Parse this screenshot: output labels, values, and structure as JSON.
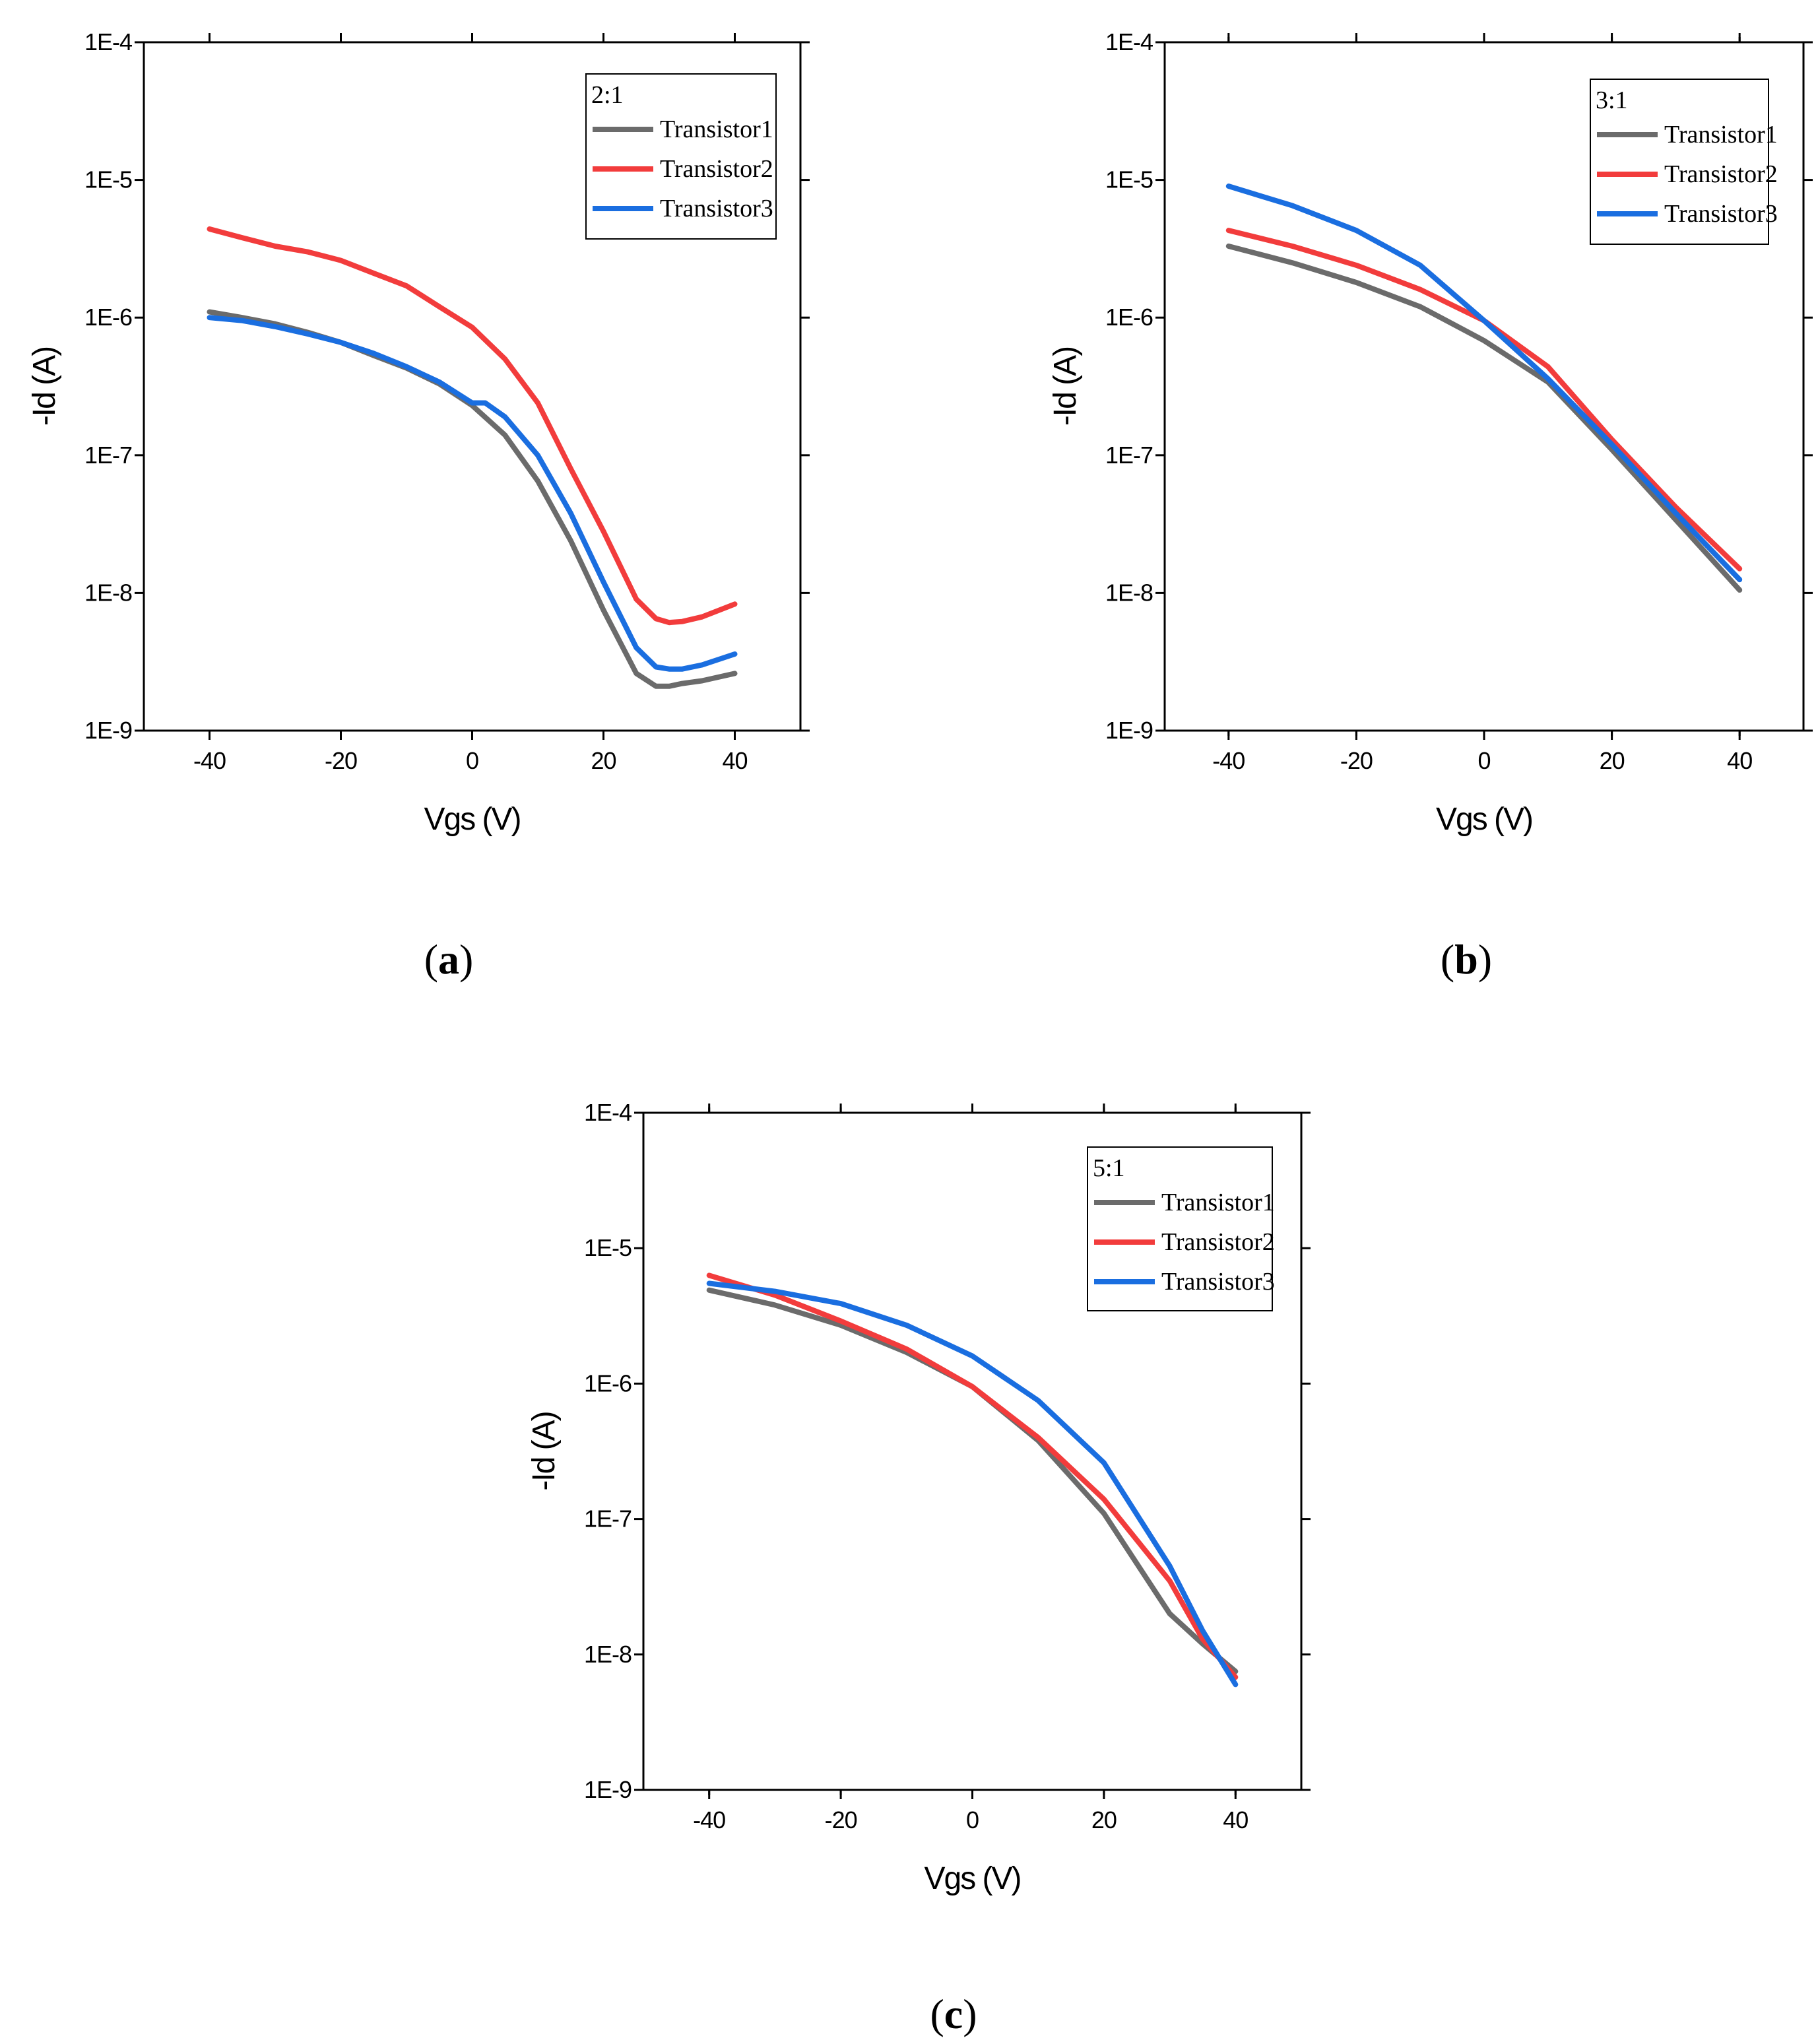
{
  "chart_data": [
    {
      "type": "line",
      "panel": "a",
      "panel_label": "a",
      "legend_title": "2:1",
      "xlabel": "Vgs (V)",
      "ylabel": "-Id (A)",
      "xlim": [
        -50,
        50
      ],
      "ylim_log10": [
        -9,
        -4
      ],
      "x_ticks": [
        "-40",
        "-20",
        "0",
        "20",
        "40"
      ],
      "y_ticks": [
        "1E-4",
        "1E-5",
        "1E-6",
        "1E-7",
        "1E-8",
        "1E-9"
      ],
      "series": [
        {
          "name": "Transistor1",
          "color": "#6b6b6b",
          "x": [
            -40,
            -35,
            -30,
            -25,
            -20,
            -15,
            -10,
            -5,
            0,
            5,
            10,
            15,
            20,
            25,
            28,
            30,
            32,
            35,
            40
          ],
          "y": [
            1.1e-06,
            1e-06,
            9e-07,
            7.8e-07,
            6.6e-07,
            5.3e-07,
            4.3e-07,
            3.3e-07,
            2.3e-07,
            1.4e-07,
            6.5e-08,
            2.4e-08,
            7.5e-09,
            2.6e-09,
            2.1e-09,
            2.1e-09,
            2.2e-09,
            2.3e-09,
            2.6e-09
          ]
        },
        {
          "name": "Transistor2",
          "color": "#f23c3c",
          "x": [
            -40,
            -35,
            -30,
            -25,
            -20,
            -15,
            -10,
            -5,
            0,
            5,
            10,
            15,
            20,
            25,
            28,
            30,
            32,
            35,
            40
          ],
          "y": [
            4.4e-06,
            3.8e-06,
            3.3e-06,
            3e-06,
            2.6e-06,
            2.1e-06,
            1.7e-06,
            1.2e-06,
            8.5e-07,
            5e-07,
            2.4e-07,
            8e-08,
            2.8e-08,
            9e-09,
            6.5e-09,
            6.1e-09,
            6.2e-09,
            6.7e-09,
            8.3e-09
          ]
        },
        {
          "name": "Transistor3",
          "color": "#1a6ee0",
          "x": [
            -40,
            -35,
            -30,
            -25,
            -20,
            -15,
            -10,
            -5,
            0,
            2,
            5,
            10,
            15,
            20,
            25,
            28,
            30,
            32,
            35,
            40
          ],
          "y": [
            1e-06,
            9.5e-07,
            8.6e-07,
            7.6e-07,
            6.6e-07,
            5.5e-07,
            4.4e-07,
            3.4e-07,
            2.4e-07,
            2.4e-07,
            1.9e-07,
            1e-07,
            3.8e-08,
            1.2e-08,
            4e-09,
            2.9e-09,
            2.8e-09,
            2.8e-09,
            3e-09,
            3.6e-09
          ]
        }
      ]
    },
    {
      "type": "line",
      "panel": "b",
      "panel_label": "b",
      "legend_title": "3:1",
      "xlabel": "Vgs (V)",
      "ylabel": "-Id (A)",
      "xlim": [
        -50,
        50
      ],
      "ylim_log10": [
        -9,
        -4
      ],
      "x_ticks": [
        "-40",
        "-20",
        "0",
        "20",
        "40"
      ],
      "y_ticks": [
        "1E-4",
        "1E-5",
        "1E-6",
        "1E-7",
        "1E-8",
        "1E-9"
      ],
      "series": [
        {
          "name": "Transistor1",
          "color": "#6b6b6b",
          "x": [
            -40,
            -30,
            -20,
            -10,
            0,
            10,
            20,
            30,
            40
          ],
          "y": [
            3.3e-06,
            2.5e-06,
            1.8e-06,
            1.2e-06,
            6.8e-07,
            3.4e-07,
            1.1e-07,
            3.4e-08,
            1.05e-08
          ]
        },
        {
          "name": "Transistor2",
          "color": "#f23c3c",
          "x": [
            -40,
            -30,
            -20,
            -10,
            0,
            10,
            20,
            30,
            40
          ],
          "y": [
            4.3e-06,
            3.3e-06,
            2.4e-06,
            1.6e-06,
            9.5e-07,
            4.4e-07,
            1.3e-07,
            4.2e-08,
            1.5e-08
          ]
        },
        {
          "name": "Transistor3",
          "color": "#1a6ee0",
          "x": [
            -40,
            -30,
            -20,
            -10,
            0,
            10,
            20,
            30,
            40
          ],
          "y": [
            9e-06,
            6.5e-06,
            4.3e-06,
            2.4e-06,
            9.5e-07,
            3.6e-07,
            1.2e-07,
            3.8e-08,
            1.25e-08
          ]
        }
      ]
    },
    {
      "type": "line",
      "panel": "c",
      "panel_label": "c",
      "legend_title": "5:1",
      "xlabel": "Vgs (V)",
      "ylabel": "-Id (A)",
      "xlim": [
        -50,
        50
      ],
      "ylim_log10": [
        -9,
        -4
      ],
      "x_ticks": [
        "-40",
        "-20",
        "0",
        "20",
        "40"
      ],
      "y_ticks": [
        "1E-4",
        "1E-5",
        "1E-6",
        "1E-7",
        "1E-8",
        "1E-9"
      ],
      "series": [
        {
          "name": "Transistor1",
          "color": "#6b6b6b",
          "x": [
            -40,
            -30,
            -20,
            -10,
            0,
            10,
            20,
            30,
            35,
            40
          ],
          "y": [
            4.9e-06,
            3.8e-06,
            2.7e-06,
            1.7e-06,
            9.5e-07,
            3.8e-07,
            1.1e-07,
            2e-08,
            1.2e-08,
            7.5e-09
          ]
        },
        {
          "name": "Transistor2",
          "color": "#f23c3c",
          "x": [
            -40,
            -30,
            -20,
            -10,
            0,
            10,
            20,
            30,
            35,
            40
          ],
          "y": [
            6.3e-06,
            4.5e-06,
            2.9e-06,
            1.8e-06,
            9.5e-07,
            4e-07,
            1.4e-07,
            3.5e-08,
            1.3e-08,
            6.8e-09
          ]
        },
        {
          "name": "Transistor3",
          "color": "#1a6ee0",
          "x": [
            -40,
            -30,
            -20,
            -10,
            0,
            10,
            20,
            30,
            35,
            40
          ],
          "y": [
            5.5e-06,
            4.8e-06,
            3.9e-06,
            2.7e-06,
            1.6e-06,
            7.5e-07,
            2.6e-07,
            4.5e-08,
            1.5e-08,
            6e-09
          ]
        }
      ]
    }
  ]
}
